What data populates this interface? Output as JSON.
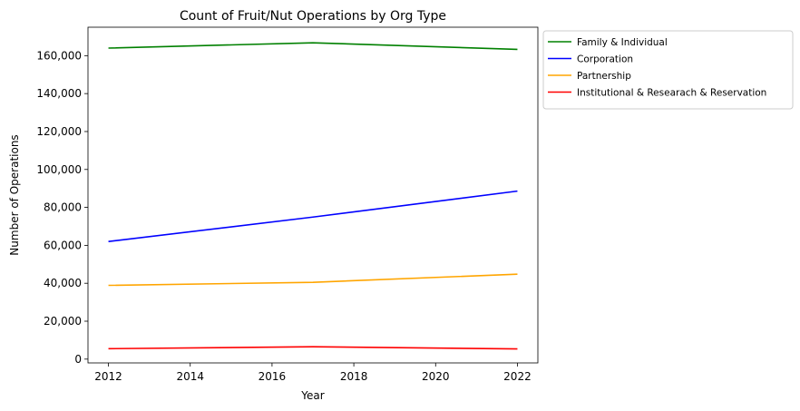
{
  "chart_data": {
    "type": "line",
    "title": "Count of Fruit/Nut Operations by Org Type",
    "xlabel": "Year",
    "ylabel": "Number of Operations",
    "x": [
      2012,
      2017,
      2022
    ],
    "xlim": [
      2011.5,
      2022.5
    ],
    "ylim": [
      -2000,
      175000
    ],
    "xticks": [
      2012,
      2014,
      2016,
      2018,
      2020,
      2022
    ],
    "xtick_labels": [
      "2012",
      "2014",
      "2016",
      "2018",
      "2020",
      "2022"
    ],
    "yticks": [
      0,
      20000,
      40000,
      60000,
      80000,
      100000,
      120000,
      140000,
      160000
    ],
    "ytick_labels": [
      "0",
      "20,000",
      "40,000",
      "60,000",
      "80,000",
      "100,000",
      "120,000",
      "140,000",
      "160,000"
    ],
    "grid": false,
    "legend_position": "outside-upper-right",
    "series": [
      {
        "name": "Family & Individual",
        "color": "#008000",
        "values": [
          164000,
          166800,
          163300
        ]
      },
      {
        "name": "Corporation",
        "color": "#0000ff",
        "values": [
          62000,
          74900,
          88600
        ]
      },
      {
        "name": "Partnership",
        "color": "#ffa500",
        "values": [
          38900,
          40500,
          44800
        ]
      },
      {
        "name": "Institutional & Researach & Reservation",
        "color": "#ff0000",
        "values": [
          5500,
          6500,
          5400
        ]
      }
    ]
  }
}
